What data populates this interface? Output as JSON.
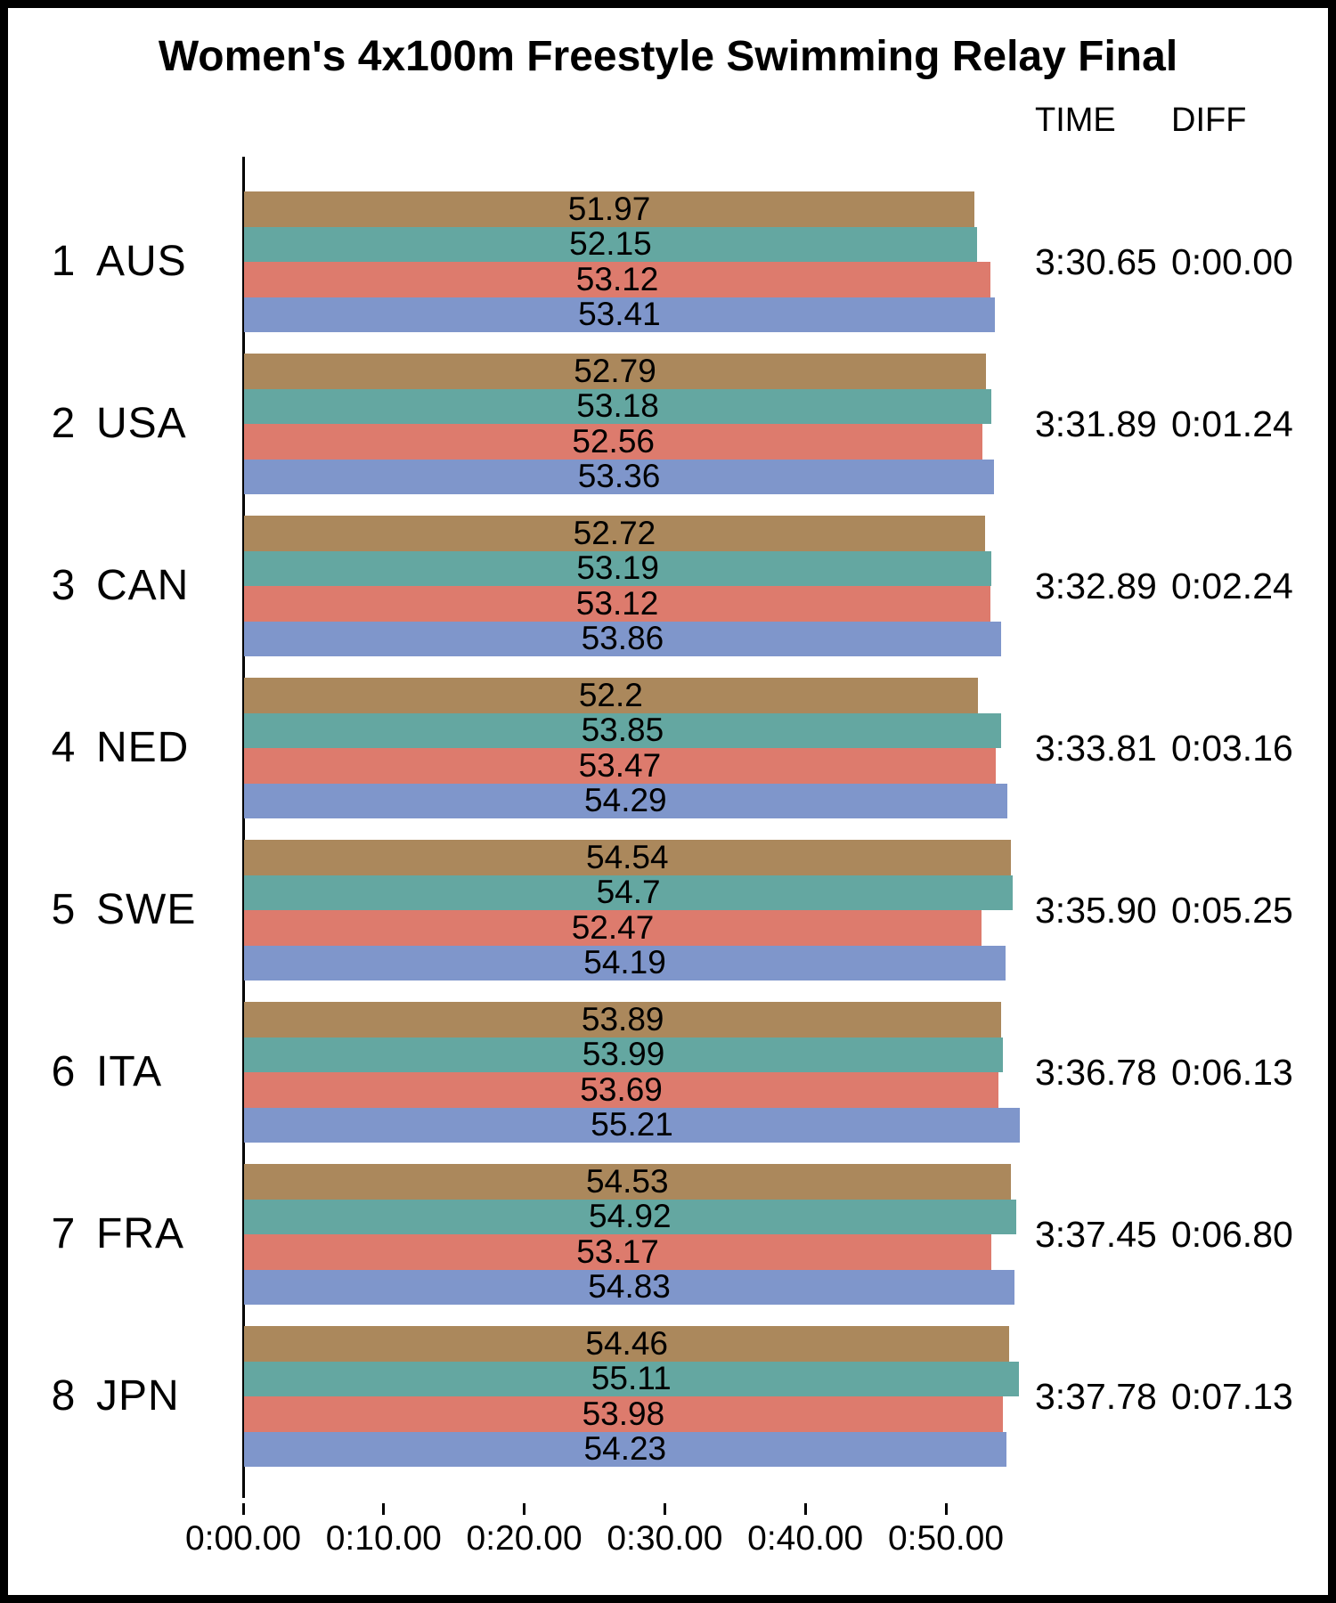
{
  "title": "Women's 4x100m Freestyle Swimming Relay Final",
  "column_headers": {
    "time": "TIME",
    "diff": "DIFF"
  },
  "chart_data": {
    "type": "bar",
    "orientation": "horizontal",
    "title": "Women's 4x100m Freestyle Swimming Relay Final",
    "categories": [
      "AUS",
      "USA",
      "CAN",
      "NED",
      "SWE",
      "ITA",
      "FRA",
      "JPN"
    ],
    "teams": [
      {
        "rank": "1",
        "code": "AUS",
        "splits": [
          "51.97",
          "52.15",
          "53.12",
          "53.41"
        ],
        "time": "3:30.65",
        "diff": "0:00.00"
      },
      {
        "rank": "2",
        "code": "USA",
        "splits": [
          "52.79",
          "53.18",
          "52.56",
          "53.36"
        ],
        "time": "3:31.89",
        "diff": "0:01.24"
      },
      {
        "rank": "3",
        "code": "CAN",
        "splits": [
          "52.72",
          "53.19",
          "53.12",
          "53.86"
        ],
        "time": "3:32.89",
        "diff": "0:02.24"
      },
      {
        "rank": "4",
        "code": "NED",
        "splits": [
          "52.2",
          "53.85",
          "53.47",
          "54.29"
        ],
        "time": "3:33.81",
        "diff": "0:03.16"
      },
      {
        "rank": "5",
        "code": "SWE",
        "splits": [
          "54.54",
          "54.7",
          "52.47",
          "54.19"
        ],
        "time": "3:35.90",
        "diff": "0:05.25"
      },
      {
        "rank": "6",
        "code": "ITA",
        "splits": [
          "53.89",
          "53.99",
          "53.69",
          "55.21"
        ],
        "time": "3:36.78",
        "diff": "0:06.13"
      },
      {
        "rank": "7",
        "code": "FRA",
        "splits": [
          "54.53",
          "54.92",
          "53.17",
          "54.83"
        ],
        "time": "3:37.45",
        "diff": "0:06.80"
      },
      {
        "rank": "8",
        "code": "JPN",
        "splits": [
          "54.46",
          "55.11",
          "53.98",
          "54.23"
        ],
        "time": "3:37.78",
        "diff": "0:07.13"
      }
    ],
    "bar_colors": [
      "#ab885c",
      "#64a7a1",
      "#dd7b6d",
      "#7f96cb"
    ],
    "x_axis": {
      "tick_labels": [
        "0:00.00",
        "0:10.00",
        "0:20.00",
        "0:30.00",
        "0:40.00",
        "0:50.00"
      ],
      "tick_seconds": [
        0,
        10,
        20,
        30,
        40,
        50
      ],
      "xlim_seconds": [
        0,
        57.7
      ]
    },
    "ylabel": "",
    "xlabel": "",
    "grid": false,
    "legend": "none"
  }
}
